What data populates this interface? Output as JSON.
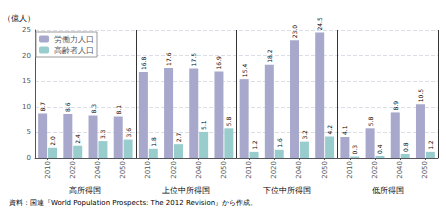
{
  "chart_data": {
    "type": "bar",
    "ylabel": "（億人）",
    "categories": [
      "2010",
      "2020",
      "2040",
      "2050",
      "2010",
      "2020",
      "2040",
      "2050",
      "2010",
      "2020",
      "2040",
      "2050",
      "2010",
      "2020",
      "2040",
      "2050"
    ],
    "group_labels": [
      "高所得国",
      "上位中所得国",
      "下位中所得国",
      "低所得国"
    ],
    "series": [
      {
        "name": "労働力人口",
        "color": "#a8a8cc",
        "values": [
          8.7,
          8.6,
          8.3,
          8.1,
          16.8,
          17.6,
          17.5,
          16.9,
          15.4,
          18.2,
          23.0,
          24.5,
          4.1,
          5.8,
          8.9,
          10.5
        ],
        "value_labels": [
          "8.7",
          "8.6",
          "8.3",
          "8.1",
          "16.8",
          "17.6",
          "17.5",
          "16.9",
          "15.4",
          "18.2",
          "23.0",
          "24.5",
          "4.1",
          "5.8",
          "8.9",
          "10.5"
        ]
      },
      {
        "name": "高齢者人口",
        "color": "#99cccc",
        "values": [
          2.0,
          2.4,
          3.3,
          3.6,
          1.8,
          2.7,
          5.1,
          5.8,
          1.2,
          1.6,
          3.2,
          4.2,
          0.3,
          0.4,
          0.8,
          1.2
        ],
        "value_labels": [
          "2.0",
          "2.4",
          "3.3",
          "3.6",
          "1.8",
          "2.7",
          "5.1",
          "5.8",
          "1.2",
          "1.6",
          "3.2",
          "4.2",
          "0.3",
          "0.4",
          "0.8",
          "1.2"
        ]
      }
    ],
    "ylim": [
      0,
      25
    ],
    "yticks": [
      0,
      5,
      10,
      15,
      20,
      25
    ],
    "grid": true,
    "legend": "upper left",
    "data_labels": true,
    "footer": "資料：国連『World Population Prospects: The 2012 Revision』から作成。"
  }
}
